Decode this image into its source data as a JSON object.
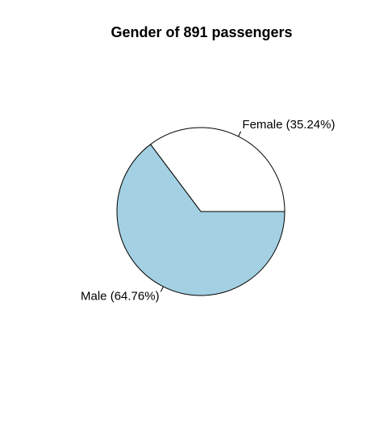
{
  "chart_data": {
    "type": "pie",
    "title": "Gender of 891 passengers",
    "slices": [
      {
        "label": "Female (35.24%)",
        "value": 35.24,
        "color": "#ffffff"
      },
      {
        "label": "Male (64.76%)",
        "value": 64.76,
        "color": "#a3d0e2"
      }
    ],
    "stroke_color": "#000000",
    "direction": "counterclockwise",
    "start_angle_deg": 0
  }
}
